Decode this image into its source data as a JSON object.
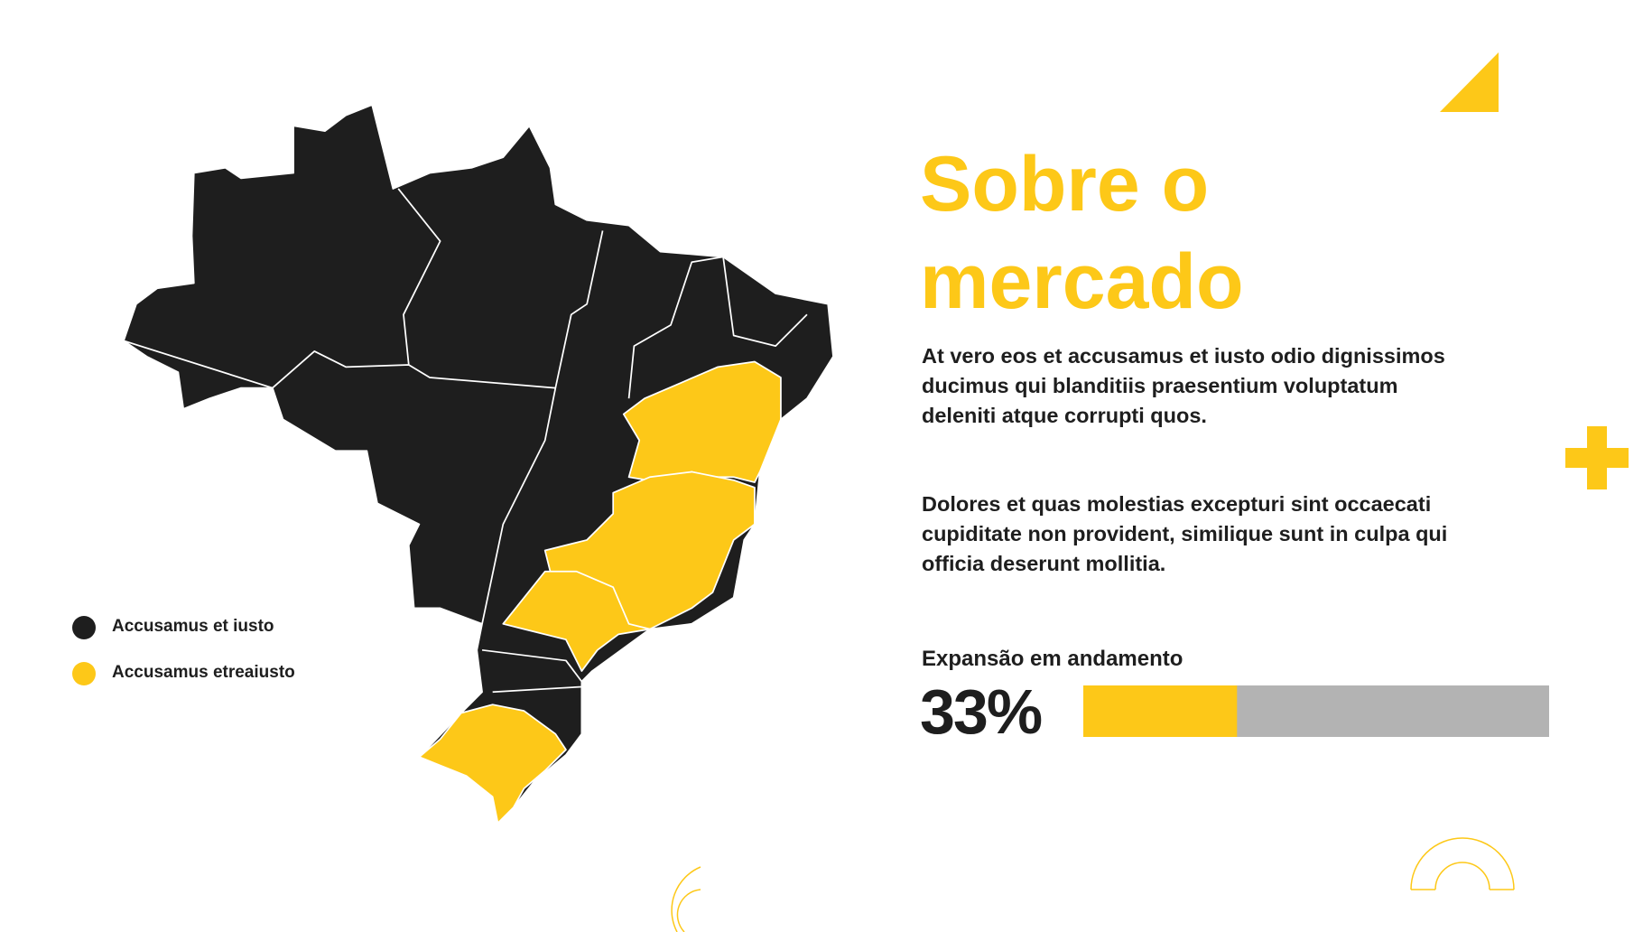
{
  "header": {
    "title": "Sobre o mercado"
  },
  "paragraphs": [
    "At vero eos et accusamus et iusto odio dignissimos ducimus qui blanditiis praesentium voluptatum deleniti atque corrupti quos.",
    "Dolores et quas molestias excepturi sint occaecati cupiditate non provident, similique sunt in culpa qui officia deserunt mollitia."
  ],
  "legend": [
    {
      "label": "Accusamus et iusto",
      "color": "#1e1e1e"
    },
    {
      "label": "Accusamus etreaiusto",
      "color": "#fdc818"
    }
  ],
  "progress": {
    "label": "Expansão em andamento",
    "value": 33,
    "value_label": "33%",
    "color": "#fdc818",
    "track_color": "#b3b3b3"
  }
}
